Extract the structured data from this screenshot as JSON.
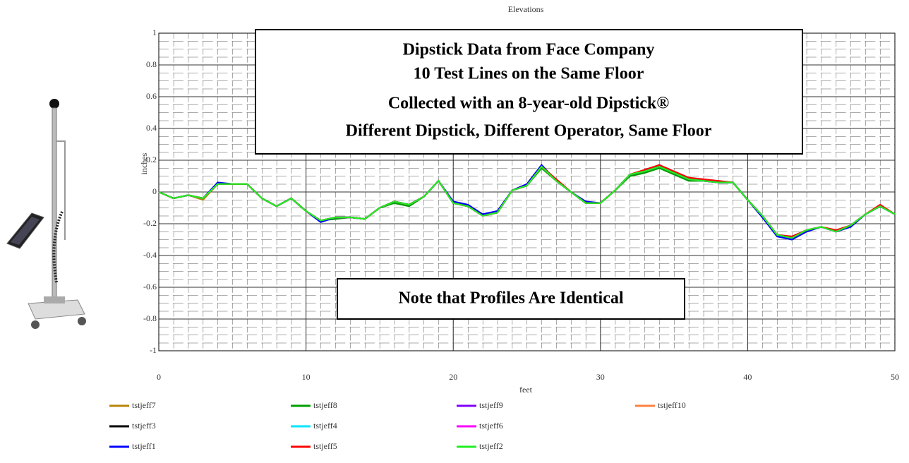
{
  "chart_data": {
    "type": "line",
    "title": "Elevations",
    "x_label": "feet",
    "y_label": "inches",
    "annotations": [
      "Dipstick Data from Face Company",
      "10 Test Lines on the Same Floor",
      "Collected with an 8-year-old Dipstick®",
      "Different Dipstick, Different Operator, Same Floor"
    ],
    "note": "Note that Profiles Are Identical",
    "x": [
      0,
      1,
      2,
      3,
      4,
      5,
      6,
      7,
      8,
      9,
      10,
      11,
      12,
      13,
      14,
      15,
      16,
      17,
      18,
      19,
      20,
      21,
      22,
      23,
      24,
      25,
      26,
      27,
      28,
      29,
      30,
      31,
      32,
      33,
      34,
      35,
      36,
      37,
      38,
      39,
      40,
      41,
      42,
      43,
      44,
      45,
      46,
      47,
      48,
      49,
      50
    ],
    "xlim": [
      0,
      50
    ],
    "xticks": [
      0,
      10,
      20,
      30,
      40,
      50
    ],
    "ylim": [
      -1,
      1
    ],
    "yticks": [
      1,
      0.8,
      0.6,
      0.4,
      0.2,
      0,
      -0.2,
      -0.4,
      -0.6,
      -0.8,
      -1
    ],
    "grid": true,
    "series": [
      {
        "name": "tstjeff7",
        "color": "#b8860b",
        "values": [
          0,
          -0.04,
          -0.02,
          -0.05,
          0.05,
          0.05,
          0.05,
          -0.04,
          -0.09,
          -0.04,
          -0.12,
          -0.18,
          -0.16,
          -0.16,
          -0.17,
          -0.1,
          -0.06,
          -0.08,
          -0.03,
          0.07,
          -0.07,
          -0.09,
          -0.15,
          -0.13,
          0.01,
          0.04,
          0.16,
          0.07,
          0,
          -0.07,
          -0.07,
          0.01,
          0.11,
          0.13,
          0.17,
          0.12,
          0.08,
          0.07,
          0.06,
          0.06,
          -0.05,
          -0.15,
          -0.27,
          -0.29,
          -0.24,
          -0.22,
          -0.25,
          -0.21,
          -0.14,
          -0.09,
          -0.14
        ]
      },
      {
        "name": "tstjeff8",
        "color": "#00a000",
        "values": [
          0,
          -0.04,
          -0.02,
          -0.04,
          0.05,
          0.05,
          0.05,
          -0.04,
          -0.09,
          -0.04,
          -0.12,
          -0.18,
          -0.17,
          -0.16,
          -0.17,
          -0.1,
          -0.07,
          -0.09,
          -0.03,
          0.07,
          -0.07,
          -0.09,
          -0.15,
          -0.13,
          0.01,
          0.04,
          0.15,
          0.07,
          0,
          -0.07,
          -0.07,
          0.01,
          0.1,
          0.12,
          0.15,
          0.11,
          0.07,
          0.07,
          0.06,
          0.06,
          -0.05,
          -0.15,
          -0.27,
          -0.29,
          -0.24,
          -0.22,
          -0.25,
          -0.21,
          -0.14,
          -0.09,
          -0.14
        ]
      },
      {
        "name": "tstjeff9",
        "color": "#8000ff",
        "values": [
          0,
          -0.04,
          -0.02,
          -0.04,
          0.05,
          0.05,
          0.05,
          -0.04,
          -0.09,
          -0.04,
          -0.12,
          -0.18,
          -0.16,
          -0.16,
          -0.17,
          -0.1,
          -0.06,
          -0.08,
          -0.03,
          0.07,
          -0.07,
          -0.09,
          -0.15,
          -0.13,
          0.01,
          0.04,
          0.16,
          0.07,
          0,
          -0.07,
          -0.07,
          0.01,
          0.11,
          0.13,
          0.16,
          0.12,
          0.08,
          0.07,
          0.06,
          0.06,
          -0.05,
          -0.15,
          -0.27,
          -0.29,
          -0.24,
          -0.22,
          -0.25,
          -0.21,
          -0.14,
          -0.09,
          -0.14
        ]
      },
      {
        "name": "tstjeff10",
        "color": "#ff8040",
        "values": [
          0,
          -0.04,
          -0.02,
          -0.04,
          0.05,
          0.05,
          0.05,
          -0.04,
          -0.09,
          -0.04,
          -0.12,
          -0.18,
          -0.16,
          -0.16,
          -0.17,
          -0.1,
          -0.06,
          -0.08,
          -0.03,
          0.07,
          -0.07,
          -0.09,
          -0.15,
          -0.13,
          0.01,
          0.04,
          0.16,
          0.07,
          0,
          -0.07,
          -0.07,
          0.01,
          0.11,
          0.13,
          0.17,
          0.12,
          0.08,
          0.07,
          0.06,
          0.06,
          -0.05,
          -0.15,
          -0.27,
          -0.29,
          -0.24,
          -0.22,
          -0.25,
          -0.21,
          -0.14,
          -0.09,
          -0.14
        ]
      },
      {
        "name": "tstjeff3",
        "color": "#000000",
        "values": [
          0,
          -0.04,
          -0.02,
          -0.04,
          0.05,
          0.05,
          0.05,
          -0.04,
          -0.09,
          -0.04,
          -0.12,
          -0.18,
          -0.16,
          -0.16,
          -0.17,
          -0.1,
          -0.06,
          -0.08,
          -0.03,
          0.07,
          -0.07,
          -0.09,
          -0.15,
          -0.13,
          0.01,
          0.04,
          0.16,
          0.07,
          0,
          -0.07,
          -0.07,
          0.01,
          0.11,
          0.13,
          0.17,
          0.12,
          0.08,
          0.07,
          0.06,
          0.06,
          -0.05,
          -0.15,
          -0.27,
          -0.29,
          -0.24,
          -0.22,
          -0.25,
          -0.21,
          -0.14,
          -0.09,
          -0.14
        ]
      },
      {
        "name": "tstjeff4",
        "color": "#00e5ff",
        "values": [
          0,
          -0.04,
          -0.02,
          -0.04,
          0.05,
          0.05,
          0.05,
          -0.04,
          -0.09,
          -0.04,
          -0.12,
          -0.18,
          -0.16,
          -0.16,
          -0.17,
          -0.1,
          -0.06,
          -0.08,
          -0.03,
          0.07,
          -0.07,
          -0.09,
          -0.15,
          -0.13,
          0.01,
          0.04,
          0.16,
          0.07,
          0,
          -0.07,
          -0.07,
          0.01,
          0.11,
          0.13,
          0.17,
          0.12,
          0.08,
          0.07,
          0.06,
          0.06,
          -0.05,
          -0.15,
          -0.28,
          -0.3,
          -0.24,
          -0.22,
          -0.25,
          -0.21,
          -0.14,
          -0.09,
          -0.14
        ]
      },
      {
        "name": "tstjeff6",
        "color": "#ff00ff",
        "values": [
          0,
          -0.04,
          -0.02,
          -0.04,
          0.05,
          0.05,
          0.05,
          -0.04,
          -0.09,
          -0.04,
          -0.12,
          -0.18,
          -0.16,
          -0.16,
          -0.17,
          -0.1,
          -0.06,
          -0.08,
          -0.03,
          0.07,
          -0.07,
          -0.09,
          -0.15,
          -0.13,
          0.01,
          0.04,
          0.16,
          0.07,
          0,
          -0.07,
          -0.07,
          0.01,
          0.11,
          0.13,
          0.17,
          0.12,
          0.08,
          0.07,
          0.06,
          0.06,
          -0.05,
          -0.15,
          -0.27,
          -0.29,
          -0.24,
          -0.22,
          -0.25,
          -0.21,
          -0.14,
          -0.09,
          -0.14
        ]
      },
      {
        "name": "tstjeff1",
        "color": "#0000ff",
        "values": [
          0,
          -0.04,
          -0.02,
          -0.04,
          0.06,
          0.05,
          0.05,
          -0.04,
          -0.09,
          -0.04,
          -0.12,
          -0.19,
          -0.16,
          -0.16,
          -0.17,
          -0.1,
          -0.06,
          -0.08,
          -0.03,
          0.07,
          -0.06,
          -0.08,
          -0.14,
          -0.12,
          0.01,
          0.05,
          0.17,
          0.07,
          0,
          -0.06,
          -0.07,
          0.01,
          0.11,
          0.13,
          0.17,
          0.12,
          0.08,
          0.07,
          0.06,
          0.06,
          -0.05,
          -0.16,
          -0.28,
          -0.3,
          -0.25,
          -0.22,
          -0.25,
          -0.22,
          -0.14,
          -0.09,
          -0.14
        ]
      },
      {
        "name": "tstjeff5",
        "color": "#ff0000",
        "values": [
          0,
          -0.04,
          -0.02,
          -0.04,
          0.05,
          0.05,
          0.05,
          -0.04,
          -0.09,
          -0.04,
          -0.12,
          -0.18,
          -0.16,
          -0.16,
          -0.17,
          -0.1,
          -0.06,
          -0.08,
          -0.03,
          0.07,
          -0.07,
          -0.09,
          -0.15,
          -0.13,
          0.01,
          0.04,
          0.16,
          0.08,
          0,
          -0.07,
          -0.07,
          0.01,
          0.11,
          0.14,
          0.17,
          0.13,
          0.09,
          0.08,
          0.07,
          0.06,
          -0.05,
          -0.15,
          -0.27,
          -0.28,
          -0.24,
          -0.22,
          -0.24,
          -0.21,
          -0.14,
          -0.08,
          -0.14
        ]
      },
      {
        "name": "tstjeff2",
        "color": "#22ee22",
        "values": [
          0,
          -0.04,
          -0.02,
          -0.04,
          0.05,
          0.05,
          0.05,
          -0.04,
          -0.09,
          -0.04,
          -0.12,
          -0.18,
          -0.16,
          -0.16,
          -0.17,
          -0.1,
          -0.06,
          -0.08,
          -0.03,
          0.07,
          -0.07,
          -0.09,
          -0.15,
          -0.13,
          0.01,
          0.04,
          0.16,
          0.07,
          0,
          -0.07,
          -0.07,
          0.01,
          0.11,
          0.13,
          0.16,
          0.12,
          0.08,
          0.07,
          0.06,
          0.06,
          -0.05,
          -0.15,
          -0.27,
          -0.29,
          -0.24,
          -0.22,
          -0.25,
          -0.21,
          -0.14,
          -0.09,
          -0.14
        ]
      }
    ]
  }
}
